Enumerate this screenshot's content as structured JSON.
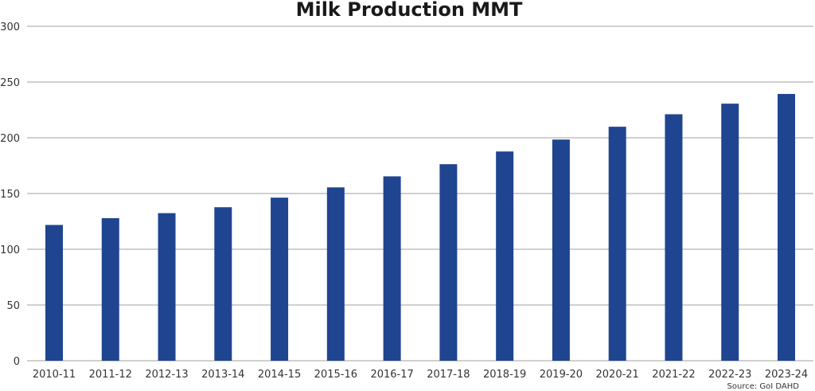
{
  "chart_data": {
    "type": "bar",
    "title": "Milk Production MMT",
    "xlabel": "",
    "ylabel": "",
    "categories": [
      "2010-11",
      "2011-12",
      "2012-13",
      "2013-14",
      "2014-15",
      "2015-16",
      "2016-17",
      "2017-18",
      "2018-19",
      "2019-20",
      "2020-21",
      "2021-22",
      "2022-23",
      "2023-24"
    ],
    "values": [
      121.8,
      127.9,
      132.4,
      137.7,
      146.3,
      155.5,
      165.4,
      176.3,
      187.7,
      198.4,
      209.9,
      221.1,
      230.6,
      239.3
    ],
    "ylim": [
      0,
      300
    ],
    "yticks": [
      0,
      50,
      100,
      150,
      200,
      250,
      300
    ],
    "grid": true,
    "legend": "none",
    "bar_color": "#1f4590",
    "source": "Source: GoI DAHD"
  }
}
